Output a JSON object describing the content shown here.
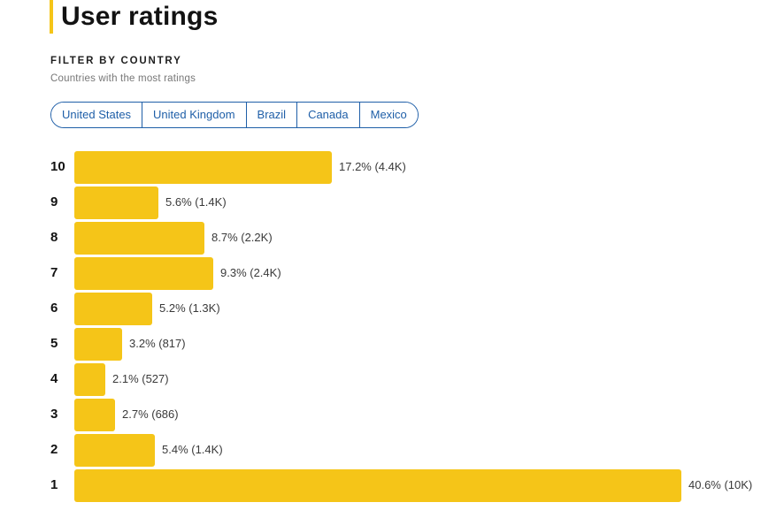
{
  "header": {
    "title": "User ratings",
    "accent_color": "#f5c518"
  },
  "filter": {
    "heading": "FILTER BY COUNTRY",
    "subtitle": "Countries with the most ratings",
    "countries": [
      "United States",
      "United Kingdom",
      "Brazil",
      "Canada",
      "Mexico"
    ],
    "chip_color": "#1f5fa8"
  },
  "chart_data": {
    "type": "bar",
    "orientation": "horizontal",
    "bar_color": "#f5c518",
    "categories": [
      "10",
      "9",
      "8",
      "7",
      "6",
      "5",
      "4",
      "3",
      "2",
      "1"
    ],
    "values": [
      17.2,
      5.6,
      8.7,
      9.3,
      5.2,
      3.2,
      2.1,
      2.7,
      5.4,
      40.6
    ],
    "value_labels": [
      "17.2% (4.4K)",
      "5.6% (1.4K)",
      "8.7% (2.2K)",
      "9.3% (2.4K)",
      "5.2% (1.3K)",
      "3.2% (817)",
      "2.1% (527)",
      "2.7% (686)",
      "5.4% (1.4K)",
      "40.6% (10K)"
    ],
    "xlim": [
      0,
      40.6
    ]
  }
}
